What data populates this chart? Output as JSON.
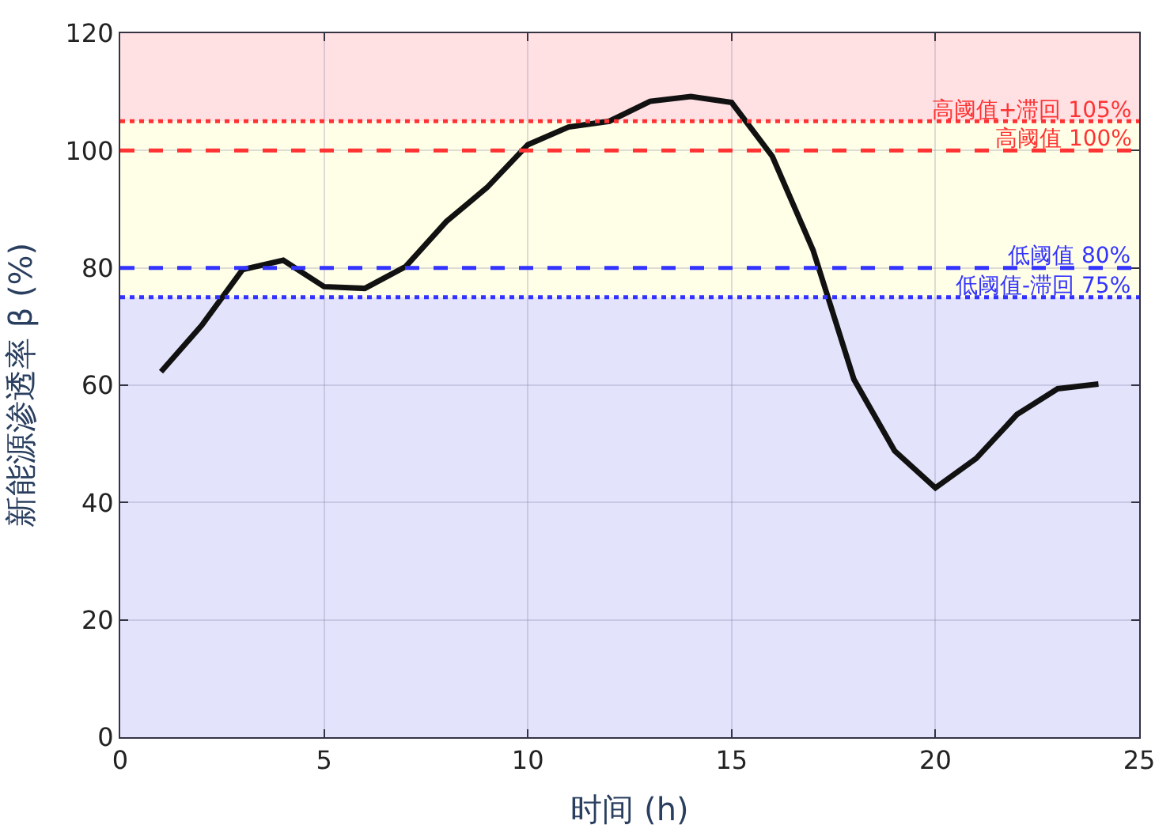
{
  "chart_data": {
    "type": "line",
    "xlabel": "时间 (h)",
    "ylabel": "新能源渗透率 β (%)",
    "x": [
      1,
      2,
      3,
      4,
      5,
      6,
      7,
      8,
      9,
      10,
      11,
      12,
      13,
      14,
      15,
      16,
      17,
      18,
      19,
      20,
      21,
      22,
      23,
      24
    ],
    "series": [
      {
        "color": "#111111",
        "values": [
          62.3,
          70.2,
          79.7,
          81.3,
          76.8,
          76.5,
          80.2,
          87.9,
          93.7,
          101,
          104,
          105,
          108.4,
          109.2,
          108.2,
          99,
          83,
          61,
          48.8,
          42.5,
          47.5,
          55,
          59.4,
          60.2
        ]
      }
    ],
    "xlim": [
      0,
      25
    ],
    "xticks": [
      0,
      5,
      10,
      15,
      20,
      25
    ],
    "ylim": [
      0,
      120
    ],
    "yticks": [
      0,
      20,
      40,
      60,
      80,
      100,
      120
    ],
    "grid": true,
    "marker": "none",
    "line_style": "solid",
    "bands": [
      {
        "axis": "y",
        "from": 0,
        "to": 75,
        "color": "#e3e3fc"
      },
      {
        "axis": "y",
        "from": 75,
        "to": 105,
        "color": "#fffee6"
      },
      {
        "axis": "y",
        "from": 105,
        "to": 120,
        "color": "#ffe0e3"
      }
    ],
    "ref_lines": [
      {
        "axis": "y",
        "value": 105,
        "label": "高阈值+滞回 105%",
        "color": "#ff3333",
        "line_style": "dotted"
      },
      {
        "axis": "y",
        "value": 100,
        "label": "高阈值 100%",
        "color": "#ff3333",
        "line_style": "dashed"
      },
      {
        "axis": "y",
        "value": 80,
        "label": "低阈值 80%",
        "color": "#3333ff",
        "line_style": "dashed"
      },
      {
        "axis": "y",
        "value": 75,
        "label": "低阈值-滞回 75%",
        "color": "#3333ff",
        "line_style": "dotted"
      }
    ]
  }
}
